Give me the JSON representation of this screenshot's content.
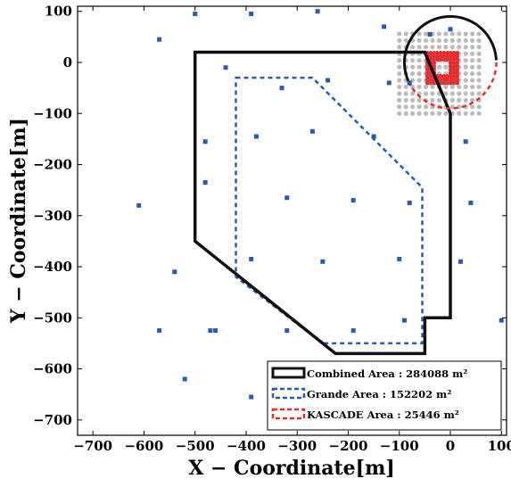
{
  "chart_data": {
    "type": "scatter",
    "xlabel": "X − Coordinate[m]",
    "ylabel": "Y − Coordinate[m]",
    "xlim": [
      -730,
      110
    ],
    "ylim": [
      -730,
      110
    ],
    "xticks": [
      -700,
      -600,
      -500,
      -400,
      -300,
      -200,
      -100,
      0,
      100
    ],
    "xtick_labels": [
      "−700",
      "−600",
      "−500",
      "−400",
      "−300",
      "−200",
      "−100",
      "0",
      "100"
    ],
    "yticks": [
      100,
      0,
      -100,
      -200,
      -300,
      -400,
      -500,
      -600,
      -700
    ],
    "ytick_labels": [
      "100",
      "0",
      "−100",
      "−200",
      "−300",
      "−400",
      "−500",
      "−600",
      "−700"
    ],
    "grande_stations": {
      "color": "#2b5aa6",
      "x": [
        -500,
        -390,
        -260,
        -130,
        -40,
        -570,
        -440,
        -330,
        -240,
        -120,
        -480,
        -380,
        -270,
        -150,
        -480,
        -320,
        -190,
        -80,
        -610,
        -390,
        -250,
        -100,
        -540,
        -460,
        -320,
        -190,
        -90,
        -520,
        -390,
        -80,
        -570,
        -470,
        0,
        30,
        20,
        40,
        100
      ],
      "y": [
        95,
        95,
        100,
        70,
        55,
        45,
        -10,
        -50,
        -35,
        -40,
        -155,
        -145,
        -135,
        -145,
        -235,
        -265,
        -270,
        -275,
        -280,
        -385,
        -390,
        -385,
        -410,
        -525,
        -525,
        -525,
        -505,
        -620,
        -655,
        -40,
        -525,
        -525,
        65,
        -155,
        -390,
        -275,
        -505
      ]
    },
    "kascade_grid": {
      "color": "#bbbbbb",
      "x_range": [
        -100,
        60
      ],
      "y_range": [
        -100,
        60
      ],
      "spacing": 13
    },
    "kascade_core": {
      "color": "#e23030",
      "x_range": [
        -45,
        15
      ],
      "y_range": [
        -40,
        20
      ],
      "ring": true
    },
    "combined_area": {
      "color": "#111111",
      "vertices": [
        [
          -500,
          20
        ],
        [
          -50,
          20
        ],
        [
          0,
          -100
        ],
        [
          0,
          -500
        ],
        [
          -50,
          -500
        ],
        [
          -50,
          -570
        ],
        [
          -225,
          -570
        ],
        [
          -500,
          -350
        ]
      ],
      "label": "Combined Area : 284088 m²"
    },
    "grande_area": {
      "color": "#2b5aa6",
      "vertices": [
        [
          -420,
          -30
        ],
        [
          -270,
          -30
        ],
        [
          -55,
          -245
        ],
        [
          -55,
          -550
        ],
        [
          -250,
          -550
        ],
        [
          -420,
          -420
        ]
      ],
      "label": "Grande Area : 152202 m²"
    },
    "kascade_area": {
      "color": "#e23030",
      "center": [
        0,
        0
      ],
      "radius": 90,
      "label": "KASCADE Area : 25446 m²"
    },
    "legend_position": "bottom-right",
    "grid": false
  }
}
